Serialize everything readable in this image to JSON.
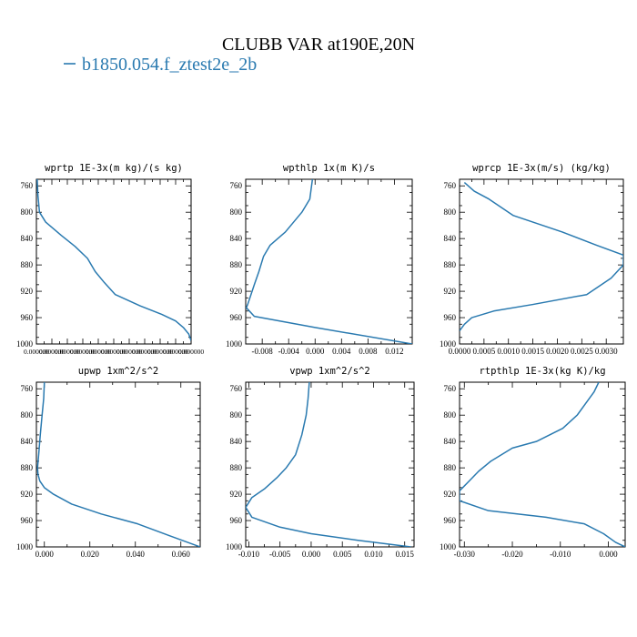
{
  "header": {
    "title": "CLUBB VAR at190E,20N",
    "legend_label": "b1850.054.f_ztest2e_2b",
    "legend_color": "#2a7ab0"
  },
  "chart_data": [
    {
      "type": "line",
      "title": "wprtp  1E-3x(m kg)/(s kg)",
      "ylim": [
        1000,
        750
      ],
      "yticks": [
        760,
        800,
        840,
        880,
        920,
        960,
        1000
      ],
      "xlim": [
        5e-07,
        7e-07
      ],
      "xticks": [
        5e-07,
        5.2e-07,
        5.4e-07,
        5.6e-07,
        5.8e-07,
        6e-07,
        6.2e-07,
        6.4e-07,
        6.6e-07,
        6.8e-07,
        7e-07
      ],
      "xtick_labels": [
        "0.000000",
        "0.000000",
        "0.000000",
        "0.000000",
        "0.000000",
        "0.000000",
        "0.000000",
        "0.000000",
        "0.000000",
        "0.000000",
        "0.000000"
      ],
      "x": [
        5.01e-07,
        5.02e-07,
        5.04e-07,
        5.12e-07,
        5.32e-07,
        5.5e-07,
        5.66e-07,
        5.76e-07,
        5.88e-07,
        6.02e-07,
        6.34e-07,
        6.62e-07,
        6.8e-07,
        6.9e-07,
        6.97e-07,
        7e-07
      ],
      "y": [
        750,
        775,
        800,
        815,
        835,
        852,
        870,
        890,
        907,
        925,
        942,
        955,
        965,
        975,
        985,
        995
      ]
    },
    {
      "type": "line",
      "title": "wpthlp  1x(m K)/s",
      "ylim": [
        1000,
        750
      ],
      "yticks": [
        760,
        800,
        840,
        880,
        920,
        960,
        1000
      ],
      "xlim": [
        -0.0105,
        0.0147
      ],
      "xticks": [
        -0.008,
        -0.004,
        0.0,
        0.004,
        0.008,
        0.012
      ],
      "xtick_labels": [
        "-0.008",
        "-0.004",
        "0.000",
        "0.004",
        "0.008",
        "0.012"
      ],
      "x": [
        -0.0004,
        -0.0006,
        -0.0008,
        -0.002,
        -0.0045,
        -0.0068,
        -0.0078,
        -0.0085,
        -0.0092,
        -0.0097,
        -0.0102,
        -0.0104,
        -0.0092,
        0.0,
        0.0147
      ],
      "y": [
        750,
        765,
        780,
        800,
        830,
        850,
        867,
        890,
        910,
        925,
        940,
        945,
        958,
        975,
        1000
      ]
    },
    {
      "type": "line",
      "title": "wprcp  1E-3x(m/s) (kg/kg)",
      "ylim": [
        1000,
        750
      ],
      "yticks": [
        760,
        800,
        840,
        880,
        920,
        960,
        1000
      ],
      "xlim": [
        0.0,
        0.00335
      ],
      "xticks": [
        0.0,
        0.0005,
        0.001,
        0.0015,
        0.002,
        0.0025,
        0.003
      ],
      "xtick_labels": [
        "0.0000",
        "0.0005",
        "0.0010",
        "0.0015",
        "0.0020",
        "0.0025",
        "0.0030"
      ],
      "x": [
        0.0001,
        0.0003,
        0.0006,
        0.0011,
        0.0021,
        0.0028,
        0.00335,
        0.00335,
        0.0031,
        0.0026,
        0.0015,
        0.0007,
        0.00025,
        0.0001,
        0.0
      ],
      "y": [
        755,
        768,
        780,
        805,
        830,
        850,
        865,
        880,
        900,
        925,
        940,
        950,
        960,
        970,
        980
      ]
    },
    {
      "type": "line",
      "title": "upwp  1xm^2/s^2",
      "ylim": [
        1000,
        750
      ],
      "yticks": [
        760,
        800,
        840,
        880,
        920,
        960,
        1000
      ],
      "xlim": [
        -0.0035,
        0.0685
      ],
      "xticks": [
        0.0,
        0.02,
        0.04,
        0.06
      ],
      "xtick_labels": [
        "0.000",
        "0.020",
        "0.040",
        "0.060"
      ],
      "x": [
        0.0,
        -0.0003,
        -0.001,
        -0.0018,
        -0.0025,
        -0.003,
        -0.0028,
        -0.002,
        0.0,
        0.004,
        0.012,
        0.025,
        0.041,
        0.055,
        0.0685
      ],
      "y": [
        750,
        775,
        800,
        830,
        860,
        880,
        890,
        900,
        910,
        920,
        935,
        950,
        965,
        983,
        1000
      ]
    },
    {
      "type": "line",
      "title": "vpwp  1xm^2/s^2",
      "ylim": [
        1000,
        750
      ],
      "yticks": [
        760,
        800,
        840,
        880,
        920,
        960,
        1000
      ],
      "xlim": [
        -0.0105,
        0.0165
      ],
      "xticks": [
        -0.01,
        -0.005,
        0.0,
        0.005,
        0.01,
        0.015
      ],
      "xtick_labels": [
        "-0.010",
        "-0.005",
        "0.000",
        "0.005",
        "0.010",
        "0.015"
      ],
      "x": [
        -0.0003,
        -0.0005,
        -0.0008,
        -0.0015,
        -0.0025,
        -0.004,
        -0.0055,
        -0.0075,
        -0.0095,
        -0.0105,
        -0.0095,
        -0.005,
        0.0,
        0.0075,
        0.016
      ],
      "y": [
        750,
        775,
        800,
        830,
        860,
        880,
        895,
        912,
        925,
        940,
        955,
        970,
        980,
        990,
        1000
      ]
    },
    {
      "type": "line",
      "title": "rtpthlp  1E-3x(kg K)/kg",
      "ylim": [
        1000,
        750
      ],
      "yticks": [
        760,
        800,
        840,
        880,
        920,
        960,
        1000
      ],
      "xlim": [
        -0.031,
        0.0035
      ],
      "xticks": [
        -0.03,
        -0.02,
        -0.01,
        0.0
      ],
      "xtick_labels": [
        "-0.030",
        "-0.020",
        "-0.010",
        "0.000"
      ],
      "x": [
        -0.002,
        -0.003,
        -0.0045,
        -0.0065,
        -0.0095,
        -0.015,
        -0.02,
        -0.0245,
        -0.027,
        -0.029,
        -0.031,
        -0.031,
        -0.025,
        -0.013,
        -0.005,
        -0.001,
        0.0015,
        0.0035
      ],
      "y": [
        750,
        765,
        780,
        800,
        820,
        840,
        850,
        870,
        885,
        900,
        915,
        930,
        945,
        955,
        965,
        980,
        993,
        1000
      ]
    }
  ]
}
